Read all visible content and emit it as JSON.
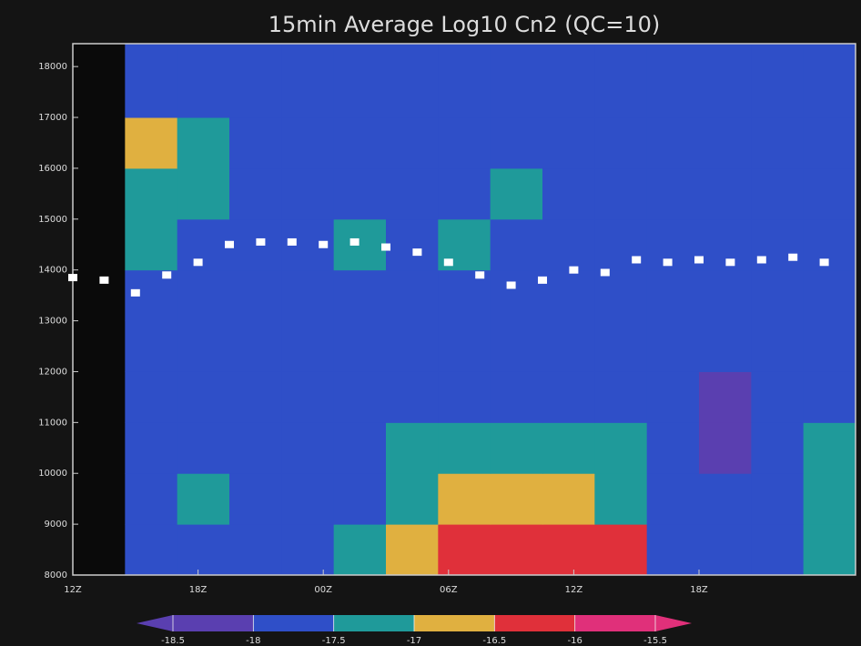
{
  "chart_data": {
    "type": "heatmap",
    "title": "15min Average Log10 Cn2 (QC=10)",
    "xlim": [
      0,
      37.5
    ],
    "ylim": [
      8000,
      18450
    ],
    "xticks": [
      {
        "value": 0,
        "label": "12Z"
      },
      {
        "value": 6,
        "label": "18Z"
      },
      {
        "value": 12,
        "label": "00Z"
      },
      {
        "value": 18,
        "label": "06Z"
      },
      {
        "value": 24,
        "label": "12Z"
      },
      {
        "value": 30,
        "label": "18Z"
      }
    ],
    "yticks": [
      8000,
      9000,
      10000,
      11000,
      12000,
      13000,
      14000,
      15000,
      16000,
      17000,
      18000
    ],
    "xbins": [
      0,
      2.5,
      5,
      7.5,
      10,
      12.5,
      15,
      17.5,
      20,
      22.5,
      25,
      27.5,
      30,
      32.5,
      35,
      37.5
    ],
    "ybins": [
      8000,
      9000,
      10000,
      11000,
      12000,
      13000,
      14000,
      15000,
      16000,
      17000,
      18450
    ],
    "z": [
      [
        null,
        -17.9,
        -17.6,
        -17.7,
        -17.8,
        -17.4,
        -16.8,
        -16.2,
        -16.1,
        -16.3,
        -16.4,
        -17.9,
        -18.0,
        -17.8,
        -17.4
      ],
      [
        null,
        -17.8,
        -17.5,
        -17.8,
        -17.8,
        -17.6,
        -17.1,
        -16.9,
        -16.6,
        -17.0,
        -17.2,
        -17.9,
        -18.0,
        -17.9,
        -17.5
      ],
      [
        null,
        -17.7,
        -17.6,
        -17.9,
        -17.9,
        -17.7,
        -17.3,
        -17.4,
        -17.1,
        -17.4,
        -17.5,
        -17.9,
        -18.1,
        -17.9,
        -17.4
      ],
      [
        null,
        -17.8,
        -17.9,
        -18.0,
        -17.9,
        -17.8,
        -17.6,
        -17.7,
        -17.6,
        -17.7,
        -17.8,
        -17.9,
        -18.1,
        -17.9,
        -17.6
      ],
      [
        null,
        -17.7,
        -17.9,
        -18.0,
        -17.9,
        -17.8,
        -17.7,
        -17.8,
        -17.7,
        -17.7,
        -17.8,
        -17.9,
        -18.0,
        -17.9,
        -17.8
      ],
      [
        null,
        -17.6,
        -17.7,
        -17.9,
        -17.8,
        -17.8,
        -17.7,
        -17.8,
        -17.8,
        -17.7,
        -17.8,
        -17.8,
        -17.9,
        -17.9,
        -17.9
      ],
      [
        null,
        -17.4,
        -17.6,
        -17.7,
        -17.6,
        -17.5,
        -17.6,
        -17.5,
        -17.6,
        -17.7,
        -17.8,
        -17.8,
        -17.9,
        -17.9,
        -17.9
      ],
      [
        null,
        -17.2,
        -17.4,
        -17.6,
        -17.6,
        -17.7,
        -17.7,
        -17.6,
        -17.5,
        -17.7,
        -17.8,
        -17.8,
        -17.9,
        -17.9,
        -17.9
      ],
      [
        null,
        -16.9,
        -17.3,
        -17.6,
        -17.7,
        -17.8,
        -17.8,
        -17.7,
        -17.6,
        -17.7,
        -17.8,
        -17.9,
        -17.9,
        -17.9,
        -17.9
      ],
      [
        null,
        -17.6,
        -17.6,
        -17.8,
        -17.8,
        -17.9,
        -17.8,
        -17.8,
        -17.8,
        -17.8,
        -17.8,
        -17.9,
        -17.9,
        -17.9,
        -17.9
      ]
    ],
    "colorbar": {
      "bounds": [
        -18.5,
        -18,
        -17.5,
        -17,
        -16.5,
        -16,
        -15.5
      ],
      "colors": [
        "#5a3fb0",
        "#2f4fc8",
        "#1f9a9a",
        "#e0b040",
        "#e0303a",
        "#e0307a"
      ]
    },
    "overlay": {
      "color": "#ffffff",
      "x": [
        0,
        1.5,
        3,
        4.5,
        6,
        7.5,
        9,
        10.5,
        12,
        13.5,
        15,
        16.5,
        18,
        19.5,
        21,
        22.5,
        24,
        25.5,
        27,
        28.5,
        30,
        31.5,
        33,
        34.5,
        36
      ],
      "values": [
        13850,
        13800,
        13550,
        13900,
        14150,
        14500,
        14550,
        14550,
        14500,
        14550,
        14450,
        14350,
        14150,
        13900,
        13700,
        13800,
        14000,
        13950,
        14200,
        14150,
        14200,
        14150,
        14200,
        14250,
        14150
      ]
    }
  }
}
